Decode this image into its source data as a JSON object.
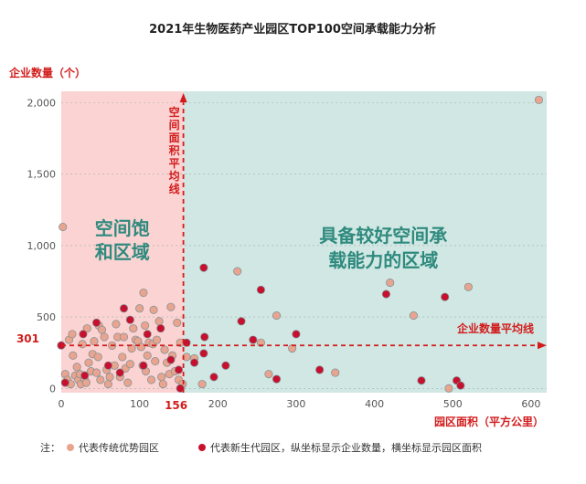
{
  "chart_data": {
    "type": "scatter",
    "title": "2021年生物医药产业园区TOP100空间承载能力分析",
    "ylabel": "企业数量（个）",
    "xlabel": "园区面积（平方公里）",
    "xlim": [
      0,
      620
    ],
    "ylim": [
      -30,
      2080
    ],
    "x_ticks": [
      0,
      100,
      200,
      300,
      400,
      500,
      600
    ],
    "x_tick_labels": [
      "0",
      "100",
      "200",
      "300",
      "400",
      "500",
      "600"
    ],
    "y_ticks": [
      0,
      500,
      1000,
      1500,
      2000
    ],
    "y_tick_labels": [
      "0",
      "500",
      "1,000",
      "1,500",
      "2,000"
    ],
    "avg_area": 156,
    "avg_area_label": "156",
    "avg_area_line_label": "空间面积平均线",
    "avg_enterprise": 301,
    "avg_enterprise_label": "301",
    "avg_enterprise_line_label": "企业数量平均线",
    "regions": {
      "saturated": {
        "label_line1": "空间饱",
        "label_line2": "和区域",
        "color": "#fbd3d2",
        "text_color": "#2f8a7e"
      },
      "capacity": {
        "label_line1": "具备较好空间承",
        "label_line2": "载能力的区域",
        "color": "#d0e7e3",
        "text_color": "#2f8a7e"
      }
    },
    "colors": {
      "traditional": "#e8a48e",
      "new_gen": "#c8102e",
      "accent": "#d21c1c",
      "dot_edge": "#7a8f96"
    },
    "legend": {
      "note_prefix": "注：",
      "traditional": "代表传统优势园区",
      "new_gen": "代表新生代园区，纵坐标显示企业数量，横坐标显示园区面积"
    },
    "series": [
      {
        "name": "传统优势园区",
        "points": [
          [
            2,
            1130
          ],
          [
            5,
            100
          ],
          [
            8,
            60
          ],
          [
            10,
            340
          ],
          [
            12,
            30
          ],
          [
            14,
            380
          ],
          [
            15,
            230
          ],
          [
            18,
            90
          ],
          [
            20,
            150
          ],
          [
            22,
            60
          ],
          [
            24,
            100
          ],
          [
            25,
            30
          ],
          [
            27,
            310
          ],
          [
            30,
            60
          ],
          [
            32,
            40
          ],
          [
            33,
            420
          ],
          [
            35,
            180
          ],
          [
            38,
            120
          ],
          [
            40,
            240
          ],
          [
            42,
            330
          ],
          [
            45,
            110
          ],
          [
            47,
            220
          ],
          [
            48,
            440
          ],
          [
            50,
            60
          ],
          [
            52,
            410
          ],
          [
            55,
            360
          ],
          [
            58,
            130
          ],
          [
            60,
            30
          ],
          [
            62,
            80
          ],
          [
            65,
            300
          ],
          [
            68,
            160
          ],
          [
            70,
            450
          ],
          [
            72,
            360
          ],
          [
            75,
            80
          ],
          [
            78,
            220
          ],
          [
            80,
            360
          ],
          [
            82,
            140
          ],
          [
            85,
            40
          ],
          [
            88,
            170
          ],
          [
            90,
            280
          ],
          [
            92,
            420
          ],
          [
            95,
            340
          ],
          [
            98,
            330
          ],
          [
            100,
            560
          ],
          [
            102,
            290
          ],
          [
            104,
            160
          ],
          [
            105,
            670
          ],
          [
            107,
            440
          ],
          [
            108,
            120
          ],
          [
            110,
            230
          ],
          [
            112,
            320
          ],
          [
            115,
            60
          ],
          [
            117,
            310
          ],
          [
            118,
            550
          ],
          [
            120,
            190
          ],
          [
            122,
            340
          ],
          [
            125,
            470
          ],
          [
            128,
            80
          ],
          [
            130,
            30
          ],
          [
            132,
            270
          ],
          [
            135,
            180
          ],
          [
            138,
            100
          ],
          [
            140,
            570
          ],
          [
            142,
            230
          ],
          [
            145,
            120
          ],
          [
            148,
            460
          ],
          [
            150,
            60
          ],
          [
            152,
            320
          ],
          [
            155,
            30
          ],
          [
            160,
            220
          ],
          [
            170,
            210
          ],
          [
            180,
            30
          ],
          [
            225,
            820
          ],
          [
            255,
            320
          ],
          [
            265,
            100
          ],
          [
            275,
            510
          ],
          [
            295,
            280
          ],
          [
            350,
            110
          ],
          [
            420,
            740
          ],
          [
            450,
            510
          ],
          [
            495,
            0
          ],
          [
            520,
            710
          ],
          [
            610,
            2020
          ]
        ]
      },
      {
        "name": "新生代园区",
        "points": [
          [
            0,
            301
          ],
          [
            5,
            40
          ],
          [
            28,
            380
          ],
          [
            30,
            90
          ],
          [
            45,
            460
          ],
          [
            60,
            160
          ],
          [
            75,
            110
          ],
          [
            80,
            560
          ],
          [
            88,
            480
          ],
          [
            105,
            160
          ],
          [
            110,
            380
          ],
          [
            127,
            420
          ],
          [
            140,
            200
          ],
          [
            150,
            130
          ],
          [
            152,
            0
          ],
          [
            160,
            320
          ],
          [
            170,
            180
          ],
          [
            182,
            845
          ],
          [
            182,
            245
          ],
          [
            183,
            360
          ],
          [
            195,
            80
          ],
          [
            210,
            160
          ],
          [
            230,
            470
          ],
          [
            245,
            340
          ],
          [
            255,
            690
          ],
          [
            275,
            65
          ],
          [
            300,
            380
          ],
          [
            330,
            130
          ],
          [
            415,
            660
          ],
          [
            460,
            55
          ],
          [
            490,
            640
          ],
          [
            505,
            55
          ],
          [
            510,
            20
          ]
        ]
      }
    ]
  }
}
